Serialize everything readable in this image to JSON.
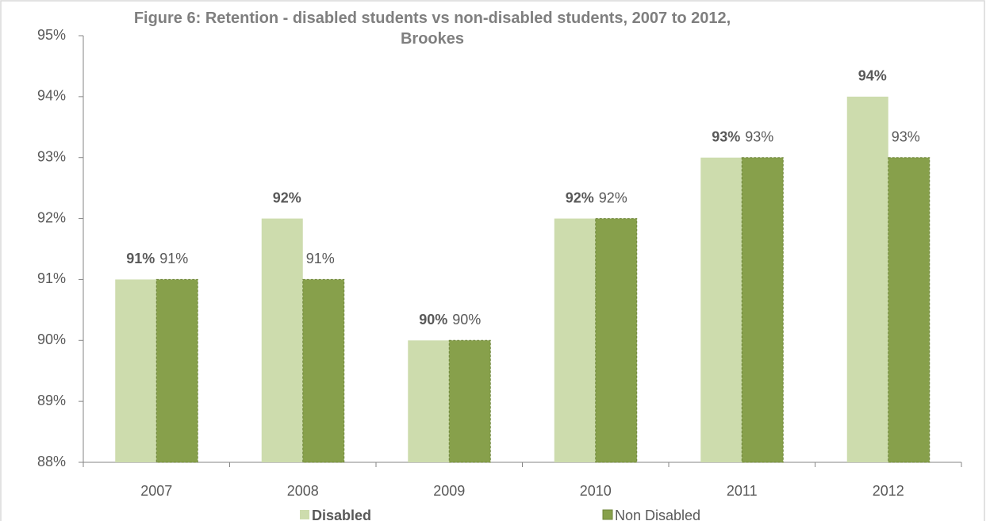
{
  "chart_data": {
    "type": "bar",
    "title": "Figure 6: Retention - disabled students vs non-disabled students, 2007 to 2012, Brookes",
    "categories": [
      "2007",
      "2008",
      "2009",
      "2010",
      "2011",
      "2012"
    ],
    "series": [
      {
        "name": "Disabled",
        "color": "#cddcad",
        "values": [
          91,
          92,
          90,
          92,
          93,
          94
        ],
        "value_labels": [
          "91%",
          "92%",
          "90%",
          "92%",
          "93%",
          "94%"
        ]
      },
      {
        "name": "Non Disabled",
        "color": "#87a04b",
        "values": [
          91,
          91,
          90,
          92,
          93,
          93
        ],
        "value_labels": [
          "91%",
          "91%",
          "90%",
          "92%",
          "93%",
          "93%"
        ]
      }
    ],
    "ylim": [
      88,
      95
    ],
    "yticks": [
      {
        "value": 88,
        "label": "88%"
      },
      {
        "value": 89,
        "label": "89%"
      },
      {
        "value": 90,
        "label": "90%"
      },
      {
        "value": 91,
        "label": "91%"
      },
      {
        "value": 92,
        "label": "92%"
      },
      {
        "value": 93,
        "label": "93%"
      },
      {
        "value": 94,
        "label": "94%"
      },
      {
        "value": 95,
        "label": "95%"
      }
    ],
    "grid": false
  }
}
